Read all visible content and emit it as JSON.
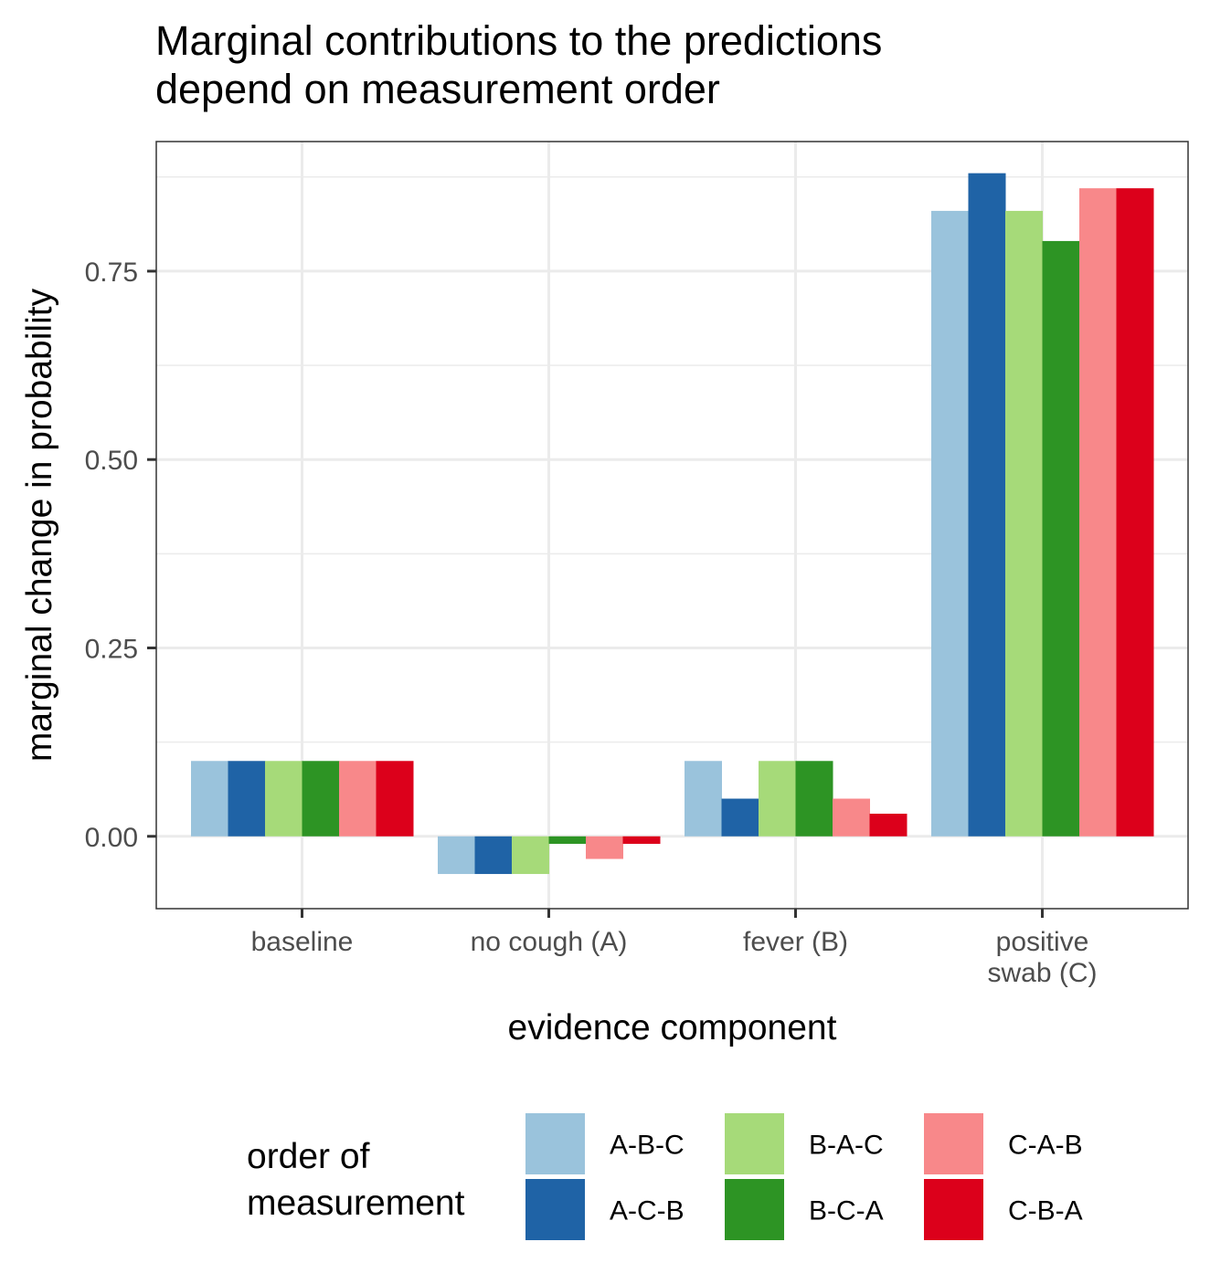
{
  "chart_data": {
    "type": "bar",
    "title_lines": [
      "Marginal contributions to the predictions",
      "depend on measurement order"
    ],
    "xlabel": "evidence component",
    "ylabel": "marginal change in probability",
    "categories": [
      [
        "baseline"
      ],
      [
        "no cough (A)"
      ],
      [
        "fever (B)"
      ],
      [
        "positive",
        "swab (C)"
      ]
    ],
    "ylim": [
      -0.096,
      0.922
    ],
    "yticks": [
      0.0,
      0.25,
      0.5,
      0.75
    ],
    "ytick_labels": [
      "0.00",
      "0.25",
      "0.50",
      "0.75"
    ],
    "grid": true,
    "legend": {
      "title_lines": [
        "order of",
        "measurement"
      ],
      "position": "bottom"
    },
    "series": [
      {
        "name": "A-B-C",
        "color": "#9ac3dc",
        "values": [
          0.1,
          -0.05,
          0.1,
          0.83
        ]
      },
      {
        "name": "A-C-B",
        "color": "#1f63a6",
        "values": [
          0.1,
          -0.05,
          0.05,
          0.88
        ]
      },
      {
        "name": "B-A-C",
        "color": "#a6da79",
        "values": [
          0.1,
          -0.05,
          0.1,
          0.83
        ]
      },
      {
        "name": "B-C-A",
        "color": "#2d9424",
        "values": [
          0.1,
          -0.01,
          0.1,
          0.79
        ]
      },
      {
        "name": "C-A-B",
        "color": "#f8888a",
        "values": [
          0.1,
          -0.03,
          0.05,
          0.86
        ]
      },
      {
        "name": "C-B-A",
        "color": "#dc001b",
        "values": [
          0.1,
          -0.01,
          0.03,
          0.86
        ]
      }
    ]
  }
}
